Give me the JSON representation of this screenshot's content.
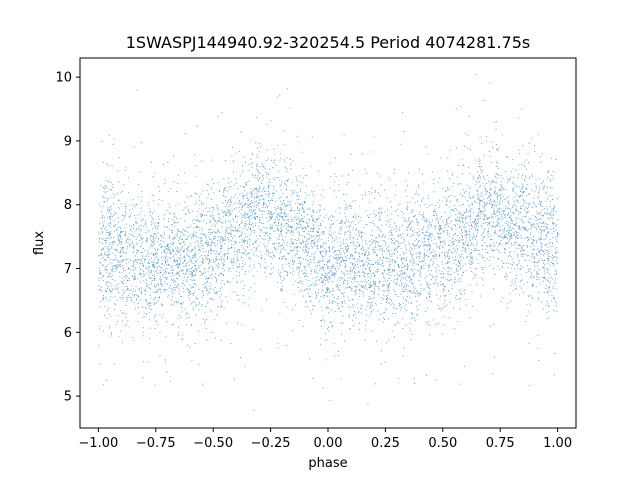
{
  "chart_data": {
    "type": "scatter",
    "title": "1SWASPJ144940.92-320254.5 Period 4074281.75s",
    "xlabel": "phase",
    "ylabel": "flux",
    "xlim": [
      -1.08,
      1.08
    ],
    "ylim": [
      4.5,
      10.3
    ],
    "xticks": [
      -1.0,
      -0.75,
      -0.5,
      -0.25,
      0.0,
      0.25,
      0.5,
      0.75,
      1.0
    ],
    "xtick_labels": [
      "−1.00",
      "−0.75",
      "−0.50",
      "−0.25",
      "0.00",
      "0.25",
      "0.50",
      "0.75",
      "1.00"
    ],
    "yticks": [
      5,
      6,
      7,
      8,
      9,
      10
    ],
    "ytick_labels": [
      "5",
      "6",
      "7",
      "8",
      "9",
      "10"
    ],
    "grid": false,
    "point_color": "#1f77b4",
    "x_range": [
      -1.0,
      1.0
    ],
    "flux_envelope": {
      "phase": [
        -1.0,
        -0.75,
        -0.5,
        -0.3,
        -0.25,
        0.0,
        0.25,
        0.5,
        0.7,
        0.75,
        1.0
      ],
      "center": [
        7.3,
        7.1,
        7.3,
        7.9,
        7.8,
        7.1,
        7.1,
        7.3,
        7.9,
        7.8,
        7.3
      ],
      "spread": [
        0.55,
        0.5,
        0.5,
        0.45,
        0.45,
        0.5,
        0.5,
        0.5,
        0.45,
        0.45,
        0.55
      ]
    }
  }
}
